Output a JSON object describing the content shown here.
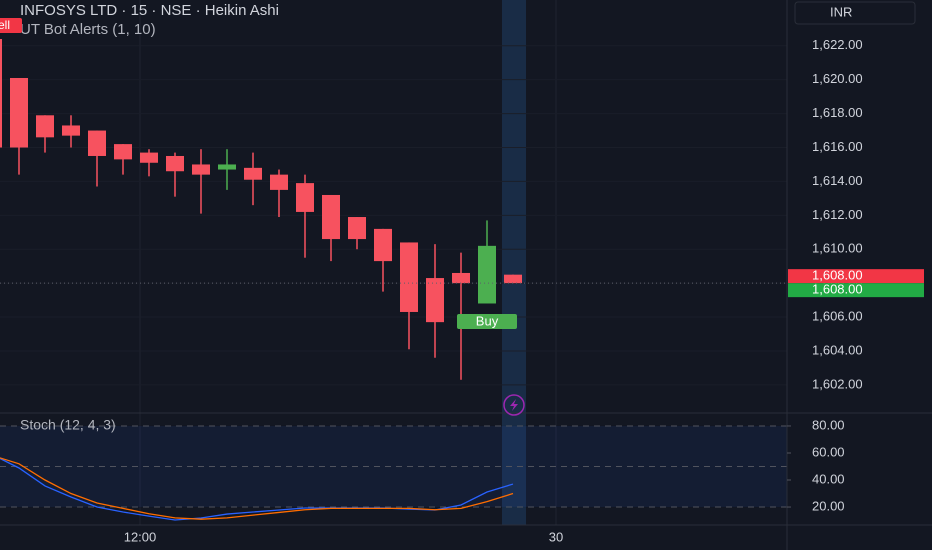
{
  "chart_data": [
    {
      "type": "candlestick",
      "title": "INFOSYS LTD · 15 · NSE · Heikin Ashi",
      "indicator": "UT Bot Alerts (1, 10)",
      "currency": "INR",
      "categories": [
        null,
        null,
        null,
        null,
        null,
        null,
        "12:00",
        null,
        null,
        null,
        null,
        null,
        null,
        null,
        null,
        null,
        null,
        null,
        null,
        null,
        null,
        null,
        "30"
      ],
      "open": [
        1622.4,
        1620.1,
        1617.9,
        1617.3,
        1617.0,
        1616.2,
        1615.7,
        1615.5,
        1615.0,
        1614.7,
        1614.8,
        1614.4,
        1613.9,
        1613.2,
        1611.9,
        1611.2,
        1610.4,
        1608.3,
        1608.6,
        1606.8,
        1608.5,
        null,
        null
      ],
      "high": [
        1622.4,
        1620.1,
        1617.9,
        1617.9,
        1617.0,
        1616.2,
        1615.9,
        1615.7,
        1615.9,
        1615.9,
        1615.7,
        1614.7,
        1614.4,
        1613.2,
        1611.9,
        1611.2,
        1610.4,
        1610.3,
        1609.8,
        1611.7,
        1608.5,
        null,
        null
      ],
      "low": [
        1614.6,
        1614.4,
        1615.7,
        1616.0,
        1613.7,
        1614.4,
        1614.3,
        1613.1,
        1612.1,
        1613.5,
        1612.6,
        1611.9,
        1609.5,
        1609.3,
        1610.0,
        1607.5,
        1604.1,
        1603.6,
        1602.3,
        1606.8,
        1608.0,
        null,
        null
      ],
      "close": [
        1616.0,
        1616.0,
        1616.6,
        1616.7,
        1615.5,
        1615.3,
        1615.1,
        1614.6,
        1614.4,
        1615.0,
        1614.1,
        1613.5,
        1612.2,
        1610.6,
        1610.6,
        1609.3,
        1606.3,
        1605.7,
        1608.0,
        1610.2,
        1608.0,
        null,
        null
      ],
      "up_color": "#4caf50",
      "down_color": "#f7525f",
      "ylim": [
        1600.4,
        1624.7
      ],
      "yticks": [
        {
          "value": 1602,
          "label": "1,602.00"
        },
        {
          "value": 1604,
          "label": "1,604.00"
        },
        {
          "value": 1606,
          "label": "1,606.00"
        },
        {
          "value": 1608,
          "label": "1,608.00"
        },
        {
          "value": 1610,
          "label": "1,610.00"
        },
        {
          "value": 1612,
          "label": "1,612.00"
        },
        {
          "value": 1614,
          "label": "1,614.00"
        },
        {
          "value": 1616,
          "label": "1,616.00"
        },
        {
          "value": 1618,
          "label": "1,618.00"
        },
        {
          "value": 1620,
          "label": "1,620.00"
        },
        {
          "value": 1622,
          "label": "1,622.00"
        }
      ],
      "price_labels": [
        {
          "value": 1608,
          "label": "1,608.00",
          "color": "#f23645"
        },
        {
          "value": 1608,
          "label": "1,608.00",
          "color": "#22ab45"
        }
      ],
      "signals": [
        {
          "label": "Sell",
          "color": "#f23645"
        },
        {
          "label": "Buy",
          "color": "#4caf50"
        }
      ]
    },
    {
      "type": "line",
      "title": "Stoch (12, 4, 3)",
      "series": [
        {
          "color": "#2962ff",
          "values": [
            58.5,
            48.9,
            35.6,
            27.4,
            20.0,
            16.3,
            13.3,
            10.4,
            11.9,
            14.8,
            16.3,
            17.8,
            19.3,
            19.3,
            19.3,
            19.3,
            18.5,
            17.8,
            21.5,
            31.1,
            37.0,
            null,
            null
          ]
        },
        {
          "color": "#ff6d00",
          "values": [
            58.0,
            52.0,
            40.0,
            30.0,
            23.0,
            19.0,
            15.0,
            12.0,
            11.0,
            12.0,
            14.0,
            16.0,
            18.0,
            19.0,
            19.0,
            19.0,
            19.0,
            18.0,
            19.0,
            24.0,
            30.0,
            null,
            null
          ]
        }
      ],
      "ylim": [
        6.7,
        89.6
      ],
      "yticks": [
        {
          "value": 80,
          "label": "80.00"
        },
        {
          "value": 60,
          "label": "60.00"
        },
        {
          "value": 40,
          "label": "40.00"
        },
        {
          "value": 20,
          "label": "20.00"
        }
      ],
      "band_lines": [
        80,
        50,
        20
      ]
    }
  ]
}
